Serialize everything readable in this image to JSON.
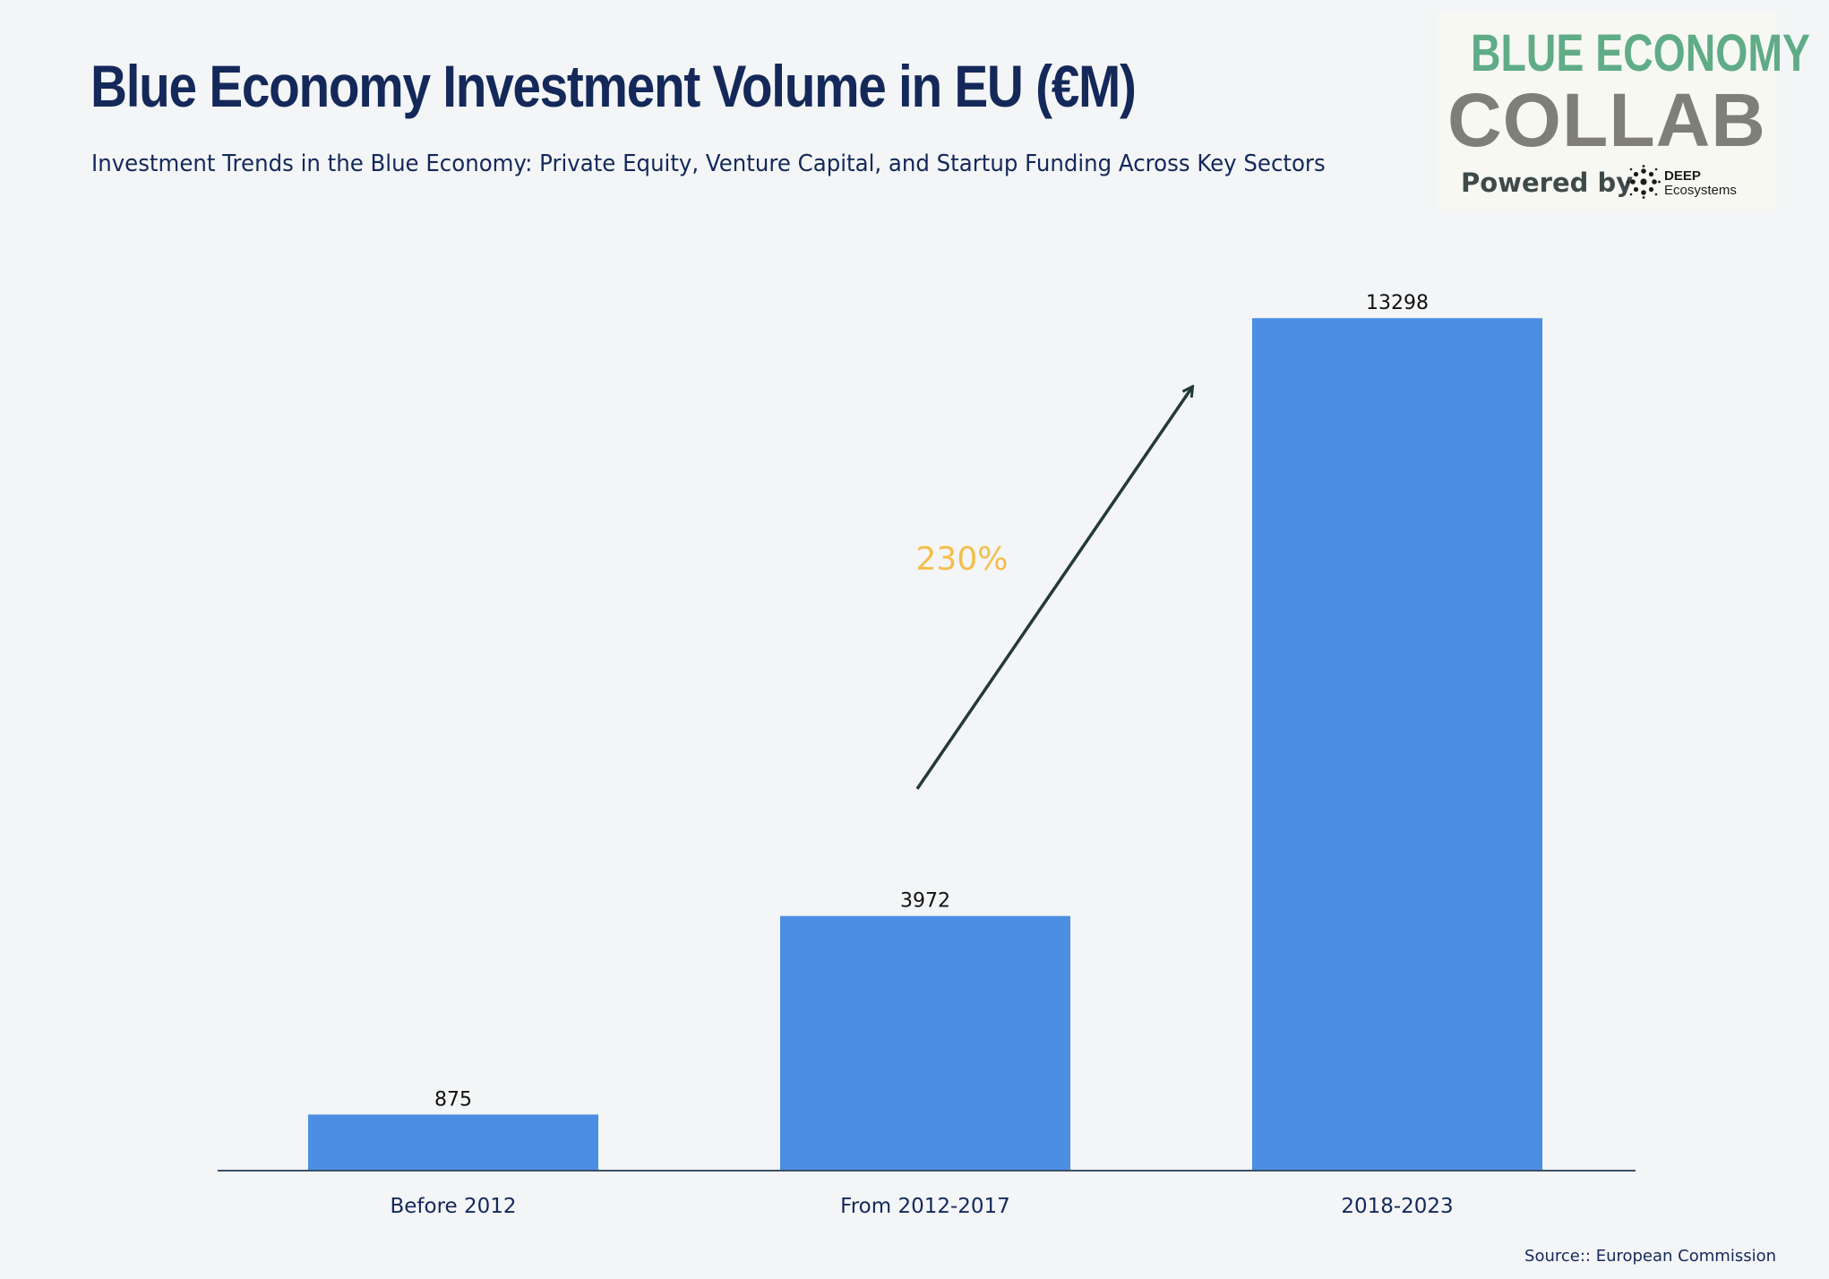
{
  "header": {
    "title": "Blue Economy Investment Volume in EU (€M)",
    "subtitle": "Investment Trends in the Blue Economy: Private Equity, Venture Capital, and Startup Funding Across Key Sectors"
  },
  "logo": {
    "line1": "BLUE ECONOMY",
    "line2": "COLLAB",
    "powered_by": "Powered by",
    "brand_top": "DEEP",
    "brand_bottom": "Ecosystems",
    "colors": {
      "line1": "#5fac87",
      "line2": "#7f7f77"
    }
  },
  "footer": {
    "source": "Source:: European Commission"
  },
  "chart_data": {
    "type": "bar",
    "categories": [
      "Before 2012",
      "From 2012-2017",
      "2018-2023"
    ],
    "values": [
      875,
      3972,
      13298
    ],
    "data_labels": [
      "875",
      "3972",
      "13298"
    ],
    "ylim": [
      0,
      14000
    ],
    "grid": false,
    "bar_color": "#4b8ee3",
    "annotation": {
      "text": "230%",
      "color": "#f4be4a",
      "arrow_from_category": "From 2012-2017",
      "arrow_to_category": "2018-2023"
    }
  }
}
